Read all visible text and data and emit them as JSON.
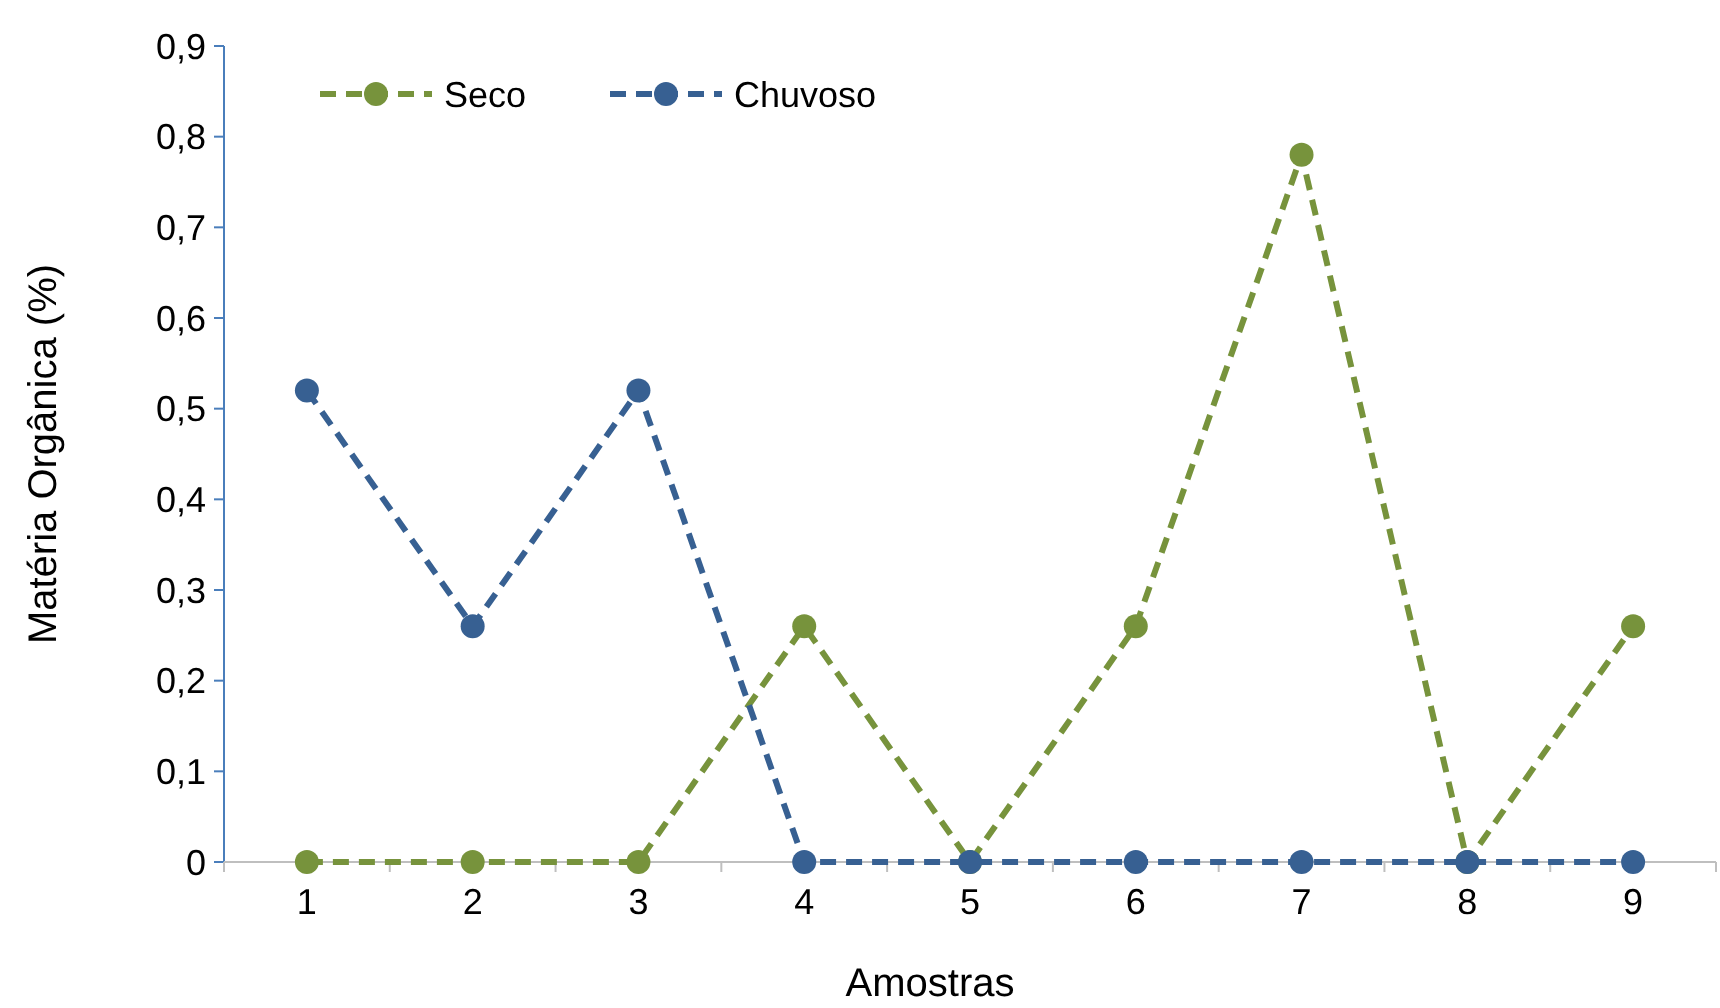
{
  "chart_data": {
    "type": "line",
    "xlabel": "Amostras",
    "ylabel": "Matéria Orgânica (%)",
    "categories": [
      "1",
      "2",
      "3",
      "4",
      "5",
      "6",
      "7",
      "8",
      "9"
    ],
    "series": [
      {
        "name": "Seco",
        "color": "#77933c",
        "values": [
          0,
          0,
          0,
          0.26,
          0,
          0.26,
          0.78,
          0,
          0.26
        ]
      },
      {
        "name": "Chuvoso",
        "color": "#376092",
        "values": [
          0.52,
          0.26,
          0.52,
          0,
          0,
          0,
          0,
          0,
          0
        ]
      }
    ],
    "ylim": [
      0,
      0.9
    ],
    "yticks": [
      {
        "value": 0,
        "label": "0"
      },
      {
        "value": 0.1,
        "label": "0,1"
      },
      {
        "value": 0.2,
        "label": "0,2"
      },
      {
        "value": 0.3,
        "label": "0,3"
      },
      {
        "value": 0.4,
        "label": "0,4"
      },
      {
        "value": 0.5,
        "label": "0,5"
      },
      {
        "value": 0.6,
        "label": "0,6"
      },
      {
        "value": 0.7,
        "label": "0,7"
      },
      {
        "value": 0.8,
        "label": "0,8"
      },
      {
        "value": 0.9,
        "label": "0,9"
      }
    ],
    "grid": false,
    "legend": "top left",
    "marker": "circle",
    "line_style": "dashed"
  }
}
